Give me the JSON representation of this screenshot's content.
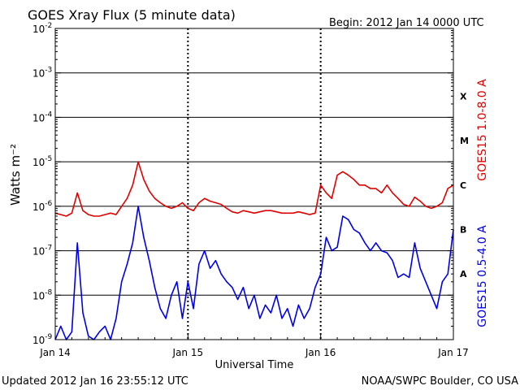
{
  "header": {
    "title": "GOES Xray Flux (5 minute data)",
    "begin": "Begin:  2012 Jan 14 0000 UTC"
  },
  "footer": {
    "updated": "Updated 2012 Jan 16 23:55:12 UTC",
    "credit": "NOAA/SWPC Boulder, CO USA"
  },
  "colors": {
    "long_channel": "#e00000",
    "short_channel": "#0000e6",
    "axes": "#000000"
  },
  "chart_data": {
    "type": "line",
    "title": "GOES Xray Flux (5 minute data)",
    "xlabel": "Universal Time",
    "ylabel": "Watts m⁻²",
    "y_scale": "log",
    "ylim": [
      1e-09,
      0.01
    ],
    "xlim": [
      0,
      72
    ],
    "x_unit": "hours since 2012 Jan 14 0000 UTC",
    "x_ticks": [
      0,
      24,
      48,
      72
    ],
    "x_tick_labels": [
      "Jan 14",
      "Jan 15",
      "Jan 16",
      "Jan 17"
    ],
    "y_ticks": [
      1e-09,
      1e-08,
      1e-07,
      1e-06,
      1e-05,
      0.0001,
      0.001,
      0.01
    ],
    "y_tick_labels": [
      {
        "base": "10",
        "exp": "-9"
      },
      {
        "base": "10",
        "exp": "-8"
      },
      {
        "base": "10",
        "exp": "-7"
      },
      {
        "base": "10",
        "exp": "-6"
      },
      {
        "base": "10",
        "exp": "-5"
      },
      {
        "base": "10",
        "exp": "-4"
      },
      {
        "base": "10",
        "exp": "-3"
      },
      {
        "base": "10",
        "exp": "-2"
      }
    ],
    "flare_classes": [
      {
        "label": "X",
        "flux": 0.0003
      },
      {
        "label": "M",
        "flux": 3e-05
      },
      {
        "label": "C",
        "flux": 3e-06
      },
      {
        "label": "B",
        "flux": 3e-07
      },
      {
        "label": "A",
        "flux": 3e-08
      }
    ],
    "grid": true,
    "series": [
      {
        "name": "GOES15 1.0-8.0 A",
        "color": "#e00000",
        "x": [
          0,
          1,
          2,
          3,
          4,
          5,
          6,
          7,
          8,
          9,
          10,
          11,
          12,
          13,
          14,
          15,
          16,
          17,
          18,
          19,
          20,
          21,
          22,
          23,
          24,
          25,
          26,
          27,
          28,
          29,
          30,
          31,
          32,
          33,
          34,
          35,
          36,
          37,
          38,
          39,
          40,
          41,
          42,
          43,
          44,
          45,
          46,
          47,
          48,
          49,
          50,
          51,
          52,
          53,
          54,
          55,
          56,
          57,
          58,
          59,
          60,
          61,
          62,
          63,
          64,
          65,
          66,
          67,
          68,
          69,
          70,
          71,
          72
        ],
        "values": [
          7e-07,
          6.5e-07,
          6e-07,
          7e-07,
          2e-06,
          8e-07,
          6.5e-07,
          6e-07,
          6e-07,
          6.5e-07,
          7e-07,
          6.5e-07,
          1e-06,
          1.5e-06,
          3e-06,
          1e-05,
          4e-06,
          2.2e-06,
          1.5e-06,
          1.2e-06,
          1e-06,
          9e-07,
          1e-06,
          1.2e-06,
          9e-07,
          8e-07,
          1.2e-06,
          1.5e-06,
          1.3e-06,
          1.2e-06,
          1.1e-06,
          9e-07,
          7.5e-07,
          7e-07,
          8e-07,
          7.5e-07,
          7e-07,
          7.5e-07,
          8e-07,
          8e-07,
          7.5e-07,
          7e-07,
          7e-07,
          7e-07,
          7.5e-07,
          7e-07,
          6.5e-07,
          7e-07,
          3e-06,
          2e-06,
          1.5e-06,
          5e-06,
          6e-06,
          5e-06,
          4e-06,
          3e-06,
          3e-06,
          2.5e-06,
          2.5e-06,
          2e-06,
          3e-06,
          2e-06,
          1.5e-06,
          1.1e-06,
          1e-06,
          1.6e-06,
          1.3e-06,
          1e-06,
          9e-07,
          1e-06,
          1.2e-06,
          2.5e-06,
          3e-06
        ]
      },
      {
        "name": "GOES15 0.5-4.0 A",
        "color": "#0000e6",
        "x": [
          0,
          1,
          2,
          3,
          4,
          5,
          6,
          7,
          8,
          9,
          10,
          11,
          12,
          13,
          14,
          15,
          16,
          17,
          18,
          19,
          20,
          21,
          22,
          23,
          24,
          25,
          26,
          27,
          28,
          29,
          30,
          31,
          32,
          33,
          34,
          35,
          36,
          37,
          38,
          39,
          40,
          41,
          42,
          43,
          44,
          45,
          46,
          47,
          48,
          49,
          50,
          51,
          52,
          53,
          54,
          55,
          56,
          57,
          58,
          59,
          60,
          61,
          62,
          63,
          64,
          65,
          66,
          67,
          68,
          69,
          70,
          71,
          72
        ],
        "values": [
          1e-09,
          2e-09,
          1e-09,
          1.5e-09,
          1.5e-07,
          4e-09,
          1.2e-09,
          1e-09,
          1.5e-09,
          2e-09,
          1e-09,
          3e-09,
          2e-08,
          5e-08,
          1.5e-07,
          1e-06,
          2e-07,
          6e-08,
          1.5e-08,
          5e-09,
          3e-09,
          1e-08,
          2e-08,
          3e-09,
          2e-08,
          5e-09,
          5e-08,
          1e-07,
          4e-08,
          6e-08,
          3e-08,
          2e-08,
          1.5e-08,
          8e-09,
          1.5e-08,
          5e-09,
          1e-08,
          3e-09,
          6e-09,
          4e-09,
          1e-08,
          3e-09,
          5e-09,
          2e-09,
          6e-09,
          3e-09,
          5e-09,
          1.5e-08,
          3e-08,
          2e-07,
          1e-07,
          1.2e-07,
          6e-07,
          5e-07,
          3e-07,
          2.5e-07,
          1.5e-07,
          1e-07,
          1.5e-07,
          1e-07,
          9e-08,
          6e-08,
          2.5e-08,
          3e-08,
          2.5e-08,
          1.5e-07,
          4e-08,
          2e-08,
          1e-08,
          5e-09,
          2e-08,
          3e-08,
          3e-07
        ]
      }
    ]
  }
}
